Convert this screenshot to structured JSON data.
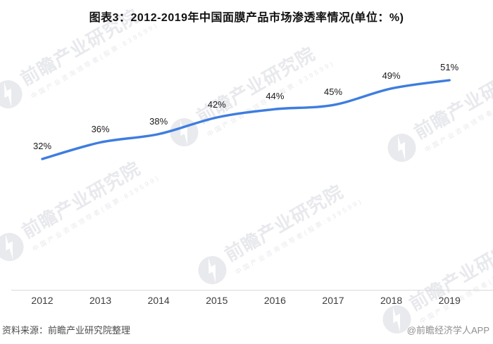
{
  "title": "图表3：2012-2019年中国面膜产品市场渗透率情况(单位：%)",
  "chart_data": {
    "type": "line",
    "title": "图表3：2012-2019年中国面膜产品市场渗透率情况(单位：%)",
    "unit": "%",
    "categories": [
      "2012",
      "2013",
      "2014",
      "2015",
      "2016",
      "2017",
      "2018",
      "2019"
    ],
    "values": [
      32,
      36,
      38,
      42,
      44,
      45,
      49,
      51
    ],
    "data_labels": [
      "32%",
      "36%",
      "38%",
      "42%",
      "44%",
      "45%",
      "49%",
      "51%"
    ],
    "xlabel": "",
    "ylabel": "",
    "ylim": [
      30,
      55
    ],
    "grid": false,
    "legend": false,
    "line_color": "#3e7de0",
    "smooth": true
  },
  "watermark": {
    "big": "前瞻产业研究院",
    "small": "中国产业咨询领导者(股票:839599)"
  },
  "footer": {
    "source": "资料来源：前瞻产业研究院整理",
    "credit": "@前瞻经济学人APP"
  }
}
